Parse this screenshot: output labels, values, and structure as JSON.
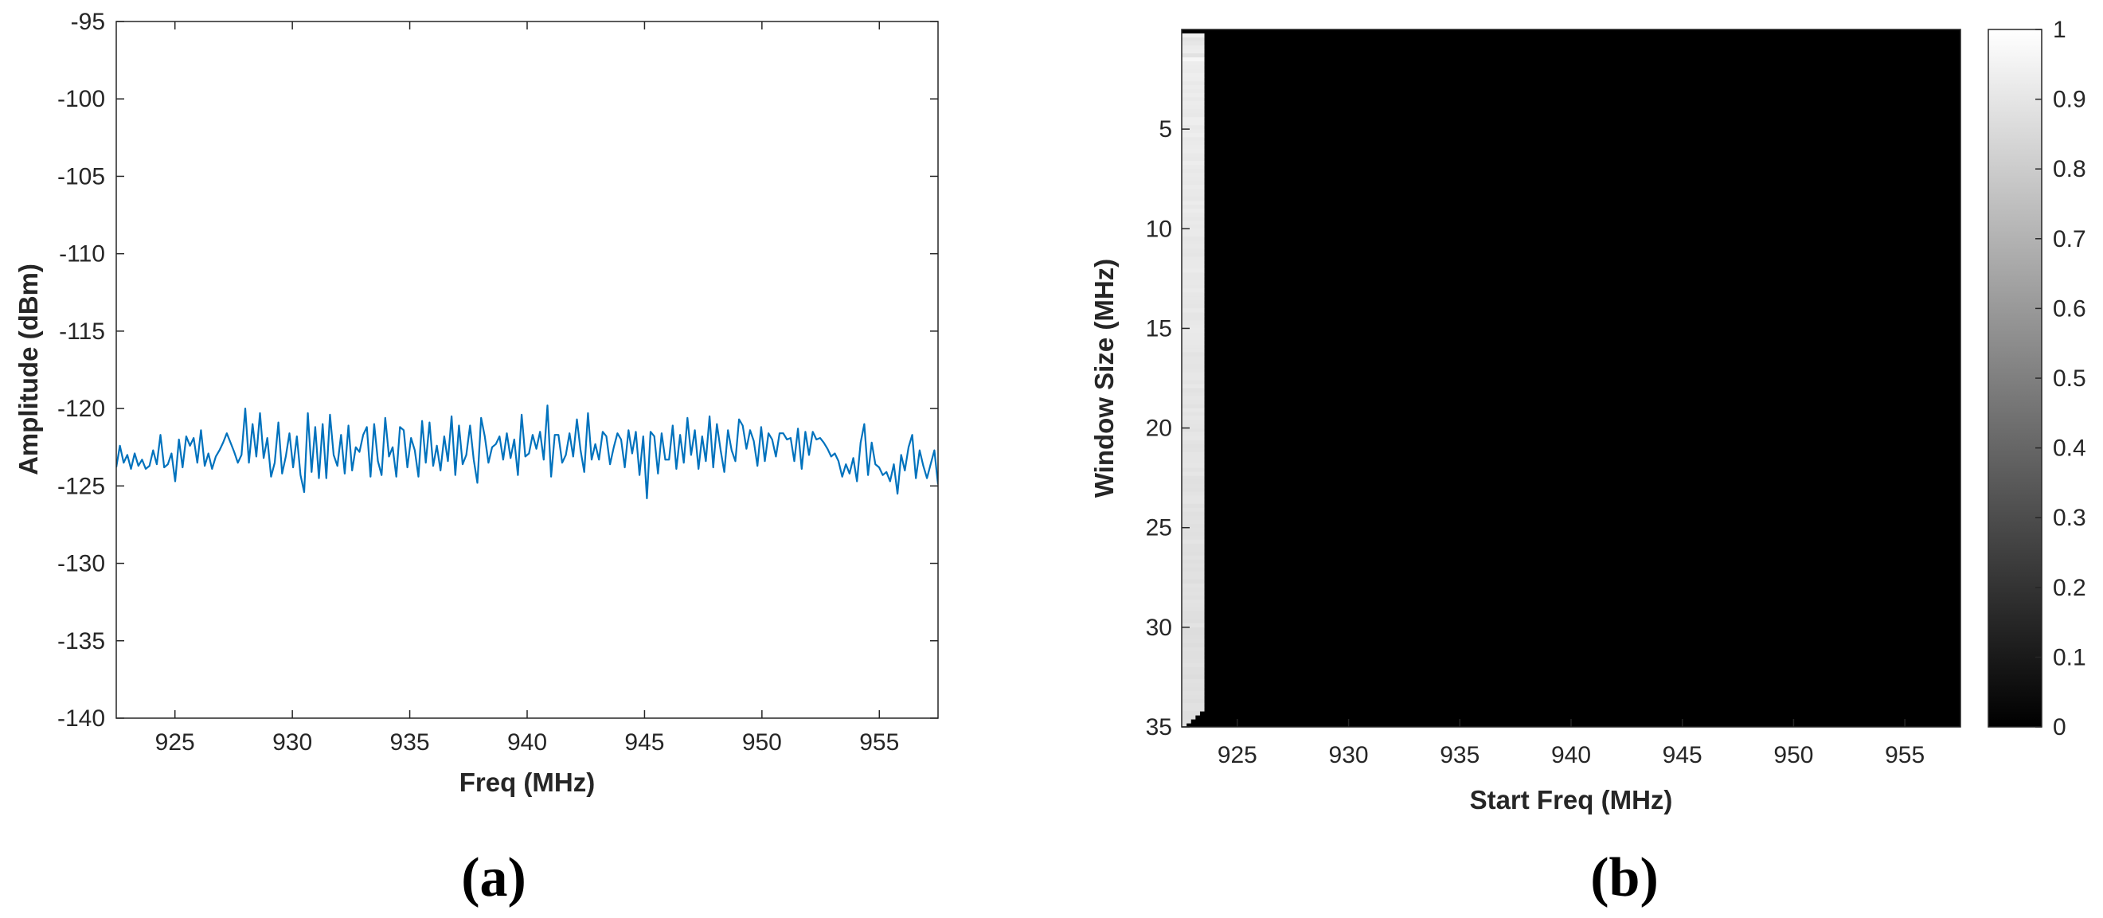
{
  "chart_data": [
    {
      "type": "line",
      "panel_label": "(a)",
      "xlabel": "Freq (MHz)",
      "ylabel": "Amplitude (dBm)",
      "xlim": [
        922.5,
        957.5
      ],
      "ylim": [
        -140,
        -95
      ],
      "xticks": [
        925,
        930,
        935,
        940,
        945,
        950,
        955
      ],
      "yticks": [
        -95,
        -100,
        -105,
        -110,
        -115,
        -120,
        -125,
        -130,
        -135,
        -140
      ],
      "grid": false,
      "series": [
        {
          "color": "#0072BD",
          "x_start": 922.5,
          "x_end": 957.5,
          "values": [
            -123.8,
            -122.4,
            -123.5,
            -123.0,
            -123.9,
            -122.9,
            -123.7,
            -123.3,
            -123.9,
            -123.7,
            -122.7,
            -123.6,
            -121.7,
            -123.8,
            -123.6,
            -122.9,
            -124.7,
            -122.0,
            -123.8,
            -121.8,
            -122.4,
            -121.9,
            -123.5,
            -121.4,
            -123.7,
            -122.9,
            -123.9,
            -123.1,
            -122.7,
            -122.2,
            -121.6,
            -122.2,
            -122.8,
            -123.5,
            -123.0,
            -120.0,
            -123.5,
            -121.0,
            -123.1,
            -120.3,
            -123.2,
            -121.9,
            -124.4,
            -123.5,
            -120.9,
            -124.2,
            -123.1,
            -121.6,
            -123.8,
            -121.8,
            -124.3,
            -125.4,
            -120.3,
            -124.1,
            -121.2,
            -124.5,
            -121.0,
            -124.5,
            -120.4,
            -123.0,
            -123.7,
            -121.7,
            -124.2,
            -121.1,
            -124.0,
            -122.5,
            -122.8,
            -121.7,
            -121.2,
            -124.4,
            -121.0,
            -123.4,
            -124.3,
            -120.6,
            -123.1,
            -122.5,
            -124.4,
            -121.2,
            -121.4,
            -123.8,
            -121.9,
            -122.7,
            -124.4,
            -120.8,
            -123.5,
            -120.9,
            -123.7,
            -122.4,
            -124.0,
            -121.8,
            -123.4,
            -120.5,
            -124.3,
            -121.1,
            -123.6,
            -123.0,
            -121.1,
            -123.3,
            -124.8,
            -120.6,
            -121.8,
            -123.5,
            -122.5,
            -122.3,
            -121.8,
            -123.3,
            -121.6,
            -123.2,
            -122.0,
            -124.3,
            -120.4,
            -123.1,
            -122.9,
            -121.7,
            -122.6,
            -121.5,
            -123.3,
            -119.8,
            -124.4,
            -121.7,
            -121.7,
            -123.5,
            -123.0,
            -121.6,
            -123.1,
            -120.7,
            -122.7,
            -124.1,
            -120.3,
            -123.3,
            -122.3,
            -123.3,
            -121.5,
            -121.8,
            -123.6,
            -122.5,
            -121.6,
            -122.0,
            -123.8,
            -121.4,
            -122.9,
            -121.5,
            -124.3,
            -121.8,
            -125.8,
            -121.5,
            -121.8,
            -124.2,
            -121.6,
            -123.3,
            -123.3,
            -121.1,
            -123.9,
            -121.7,
            -123.5,
            -120.6,
            -123.0,
            -121.4,
            -123.9,
            -121.8,
            -123.4,
            -120.5,
            -123.8,
            -121.0,
            -122.7,
            -124.1,
            -121.4,
            -122.7,
            -123.4,
            -120.7,
            -121.1,
            -122.6,
            -121.4,
            -122.1,
            -123.7,
            -121.2,
            -123.4,
            -121.6,
            -122.0,
            -123.1,
            -121.6,
            -121.6,
            -122.0,
            -121.9,
            -123.4,
            -121.3,
            -123.9,
            -121.5,
            -123.0,
            -121.5,
            -122.0,
            -121.9,
            -122.2,
            -122.6,
            -123.1,
            -122.9,
            -123.4,
            -124.4,
            -123.6,
            -124.2,
            -123.2,
            -124.7,
            -122.2,
            -121.0,
            -124.3,
            -122.2,
            -123.6,
            -123.8,
            -124.3,
            -124.1,
            -124.7,
            -123.6,
            -125.5,
            -123.0,
            -124.0,
            -122.5,
            -121.7,
            -124.5,
            -122.7,
            -123.7,
            -124.5,
            -123.6,
            -122.7,
            -124.9
          ]
        }
      ]
    },
    {
      "type": "heatmap",
      "panel_label": "(b)",
      "xlabel": "Start Freq (MHz)",
      "ylabel": "Window Size (MHz)",
      "xlim": [
        922.5,
        957.5
      ],
      "ylim": [
        0,
        35
      ],
      "y_reversed": true,
      "xticks": [
        925,
        930,
        935,
        940,
        945,
        950,
        955
      ],
      "yticks": [
        5,
        10,
        15,
        20,
        25,
        30,
        35
      ],
      "colormap": "gray",
      "clim": [
        0,
        1
      ],
      "colorbar_ticks": [
        0,
        0.1,
        0.2,
        0.3,
        0.4,
        0.5,
        0.6,
        0.7,
        0.8,
        0.9,
        1
      ],
      "valid_value_top": 0.93,
      "valid_value_bottom": 0.87,
      "invalid_value": 0,
      "note_region": "cells with start + window > 957.5 MHz are 0"
    }
  ]
}
